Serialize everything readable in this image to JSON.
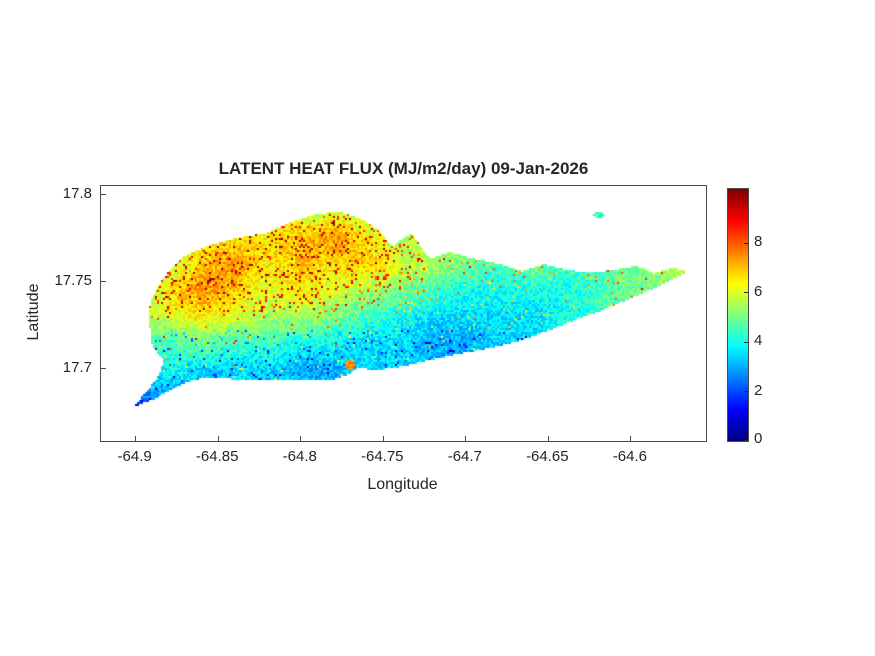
{
  "figure": {
    "background": "#ffffff",
    "text_color": "#262626",
    "axes_line_color": "#4a4a4a"
  },
  "chart_data": {
    "type": "heatmap",
    "title": "LATENT HEAT FLUX (MJ/m2/day) 09-Jan-2026",
    "xlabel": "Longitude",
    "ylabel": "Latitude",
    "xlim": [
      -64.921,
      -64.5545
    ],
    "ylim": [
      17.6585,
      17.805
    ],
    "xticks": [
      -64.9,
      -64.85,
      -64.8,
      -64.75,
      -64.7,
      -64.65,
      -64.6
    ],
    "xtick_labels": [
      "-64.9",
      "-64.85",
      "-64.8",
      "-64.75",
      "-64.7",
      "-64.65",
      "-64.6"
    ],
    "yticks": [
      17.7,
      17.75,
      17.8
    ],
    "ytick_labels": [
      "17.7",
      "17.75",
      "17.8"
    ],
    "grid_lines": false,
    "colormap": "jet",
    "clim": [
      0,
      10.2
    ],
    "colorbar_position": "right",
    "colorbar_ticks": [
      0,
      2,
      4,
      6,
      8
    ],
    "colorbar_tick_labels": [
      "0",
      "2",
      "4",
      "6",
      "8"
    ],
    "colormap_stops": [
      "#00008f",
      "#0000ff",
      "#00ffff",
      "#ffff00",
      "#ff0000",
      "#800000"
    ],
    "grid": {
      "lon": [
        -64.9,
        -64.88,
        -64.86,
        -64.84,
        -64.82,
        -64.8,
        -64.78,
        -64.76,
        -64.74,
        -64.72,
        -64.7,
        -64.68,
        -64.66,
        -64.64,
        -64.62,
        -64.6,
        -64.58,
        -64.56
      ],
      "lat": [
        17.79,
        17.775,
        17.76,
        17.745,
        17.73,
        17.715,
        17.7,
        17.685,
        17.672
      ],
      "values": [
        [
          null,
          null,
          null,
          null,
          null,
          5.5,
          6.0,
          5.5,
          null,
          null,
          null,
          null,
          null,
          null,
          null,
          null,
          null,
          null
        ],
        [
          null,
          null,
          6.0,
          6.5,
          6.5,
          7.0,
          7.5,
          6.5,
          5.5,
          null,
          null,
          null,
          null,
          null,
          null,
          null,
          null,
          null
        ],
        [
          null,
          5.5,
          7.0,
          7.5,
          6.5,
          7.0,
          6.5,
          7.0,
          6.0,
          5.5,
          5.0,
          4.5,
          5.0,
          4.5,
          4.5,
          5.0,
          5.5,
          6.0
        ],
        [
          5.0,
          6.5,
          7.5,
          7.0,
          6.0,
          6.5,
          6.0,
          5.5,
          5.0,
          4.5,
          4.0,
          4.0,
          4.0,
          4.0,
          4.5,
          5.0,
          5.0,
          null
        ],
        [
          5.5,
          6.0,
          6.5,
          6.0,
          5.5,
          5.5,
          5.0,
          4.5,
          4.0,
          3.5,
          3.5,
          3.5,
          3.5,
          4.0,
          null,
          null,
          null,
          null
        ],
        [
          4.5,
          4.5,
          5.0,
          4.5,
          4.5,
          4.0,
          4.0,
          3.5,
          3.5,
          3.0,
          3.0,
          3.5,
          null,
          null,
          null,
          null,
          null,
          null
        ],
        [
          4.0,
          4.0,
          3.5,
          3.5,
          3.5,
          3.0,
          3.0,
          3.5,
          3.5,
          null,
          null,
          null,
          null,
          null,
          null,
          null,
          null,
          null
        ],
        [
          2.5,
          3.0,
          3.0,
          3.2,
          null,
          null,
          null,
          null,
          null,
          null,
          null,
          null,
          null,
          null,
          null,
          null,
          null,
          null
        ],
        [
          1.5,
          null,
          null,
          null,
          null,
          null,
          null,
          null,
          null,
          null,
          null,
          null,
          null,
          null,
          null,
          null,
          null,
          null
        ]
      ]
    },
    "island_outline": [
      [
        -64.902,
        17.678
      ],
      [
        -64.894,
        17.686
      ],
      [
        -64.886,
        17.696
      ],
      [
        -64.883,
        17.705
      ],
      [
        -64.89,
        17.713
      ],
      [
        -64.892,
        17.728
      ],
      [
        -64.891,
        17.739
      ],
      [
        -64.886,
        17.748
      ],
      [
        -64.879,
        17.757
      ],
      [
        -64.87,
        17.765
      ],
      [
        -64.858,
        17.77
      ],
      [
        -64.84,
        17.775
      ],
      [
        -64.821,
        17.778
      ],
      [
        -64.806,
        17.784
      ],
      [
        -64.791,
        17.789
      ],
      [
        -64.776,
        17.79
      ],
      [
        -64.763,
        17.786
      ],
      [
        -64.752,
        17.779
      ],
      [
        -64.745,
        17.77
      ],
      [
        -64.733,
        17.778
      ],
      [
        -64.722,
        17.763
      ],
      [
        -64.71,
        17.767
      ],
      [
        -64.694,
        17.763
      ],
      [
        -64.679,
        17.76
      ],
      [
        -64.666,
        17.756
      ],
      [
        -64.653,
        17.76
      ],
      [
        -64.64,
        17.757
      ],
      [
        -64.625,
        17.755
      ],
      [
        -64.61,
        17.757
      ],
      [
        -64.596,
        17.759
      ],
      [
        -64.586,
        17.755
      ],
      [
        -64.575,
        17.758
      ],
      [
        -64.566,
        17.756
      ],
      [
        -64.575,
        17.751
      ],
      [
        -64.589,
        17.745
      ],
      [
        -64.604,
        17.739
      ],
      [
        -64.619,
        17.733
      ],
      [
        -64.634,
        17.728
      ],
      [
        -64.65,
        17.722
      ],
      [
        -64.667,
        17.716
      ],
      [
        -64.684,
        17.712
      ],
      [
        -64.702,
        17.709
      ],
      [
        -64.722,
        17.705
      ],
      [
        -64.74,
        17.701
      ],
      [
        -64.755,
        17.699
      ],
      [
        -64.765,
        17.701
      ],
      [
        -64.77,
        17.697
      ],
      [
        -64.779,
        17.694
      ],
      [
        -64.797,
        17.693
      ],
      [
        -64.818,
        17.693
      ],
      [
        -64.84,
        17.694
      ],
      [
        -64.858,
        17.695
      ],
      [
        -64.87,
        17.692
      ],
      [
        -64.88,
        17.687
      ],
      [
        -64.89,
        17.682
      ]
    ],
    "hotspots": [
      {
        "lon": -64.77,
        "lat": 17.702,
        "value": 7.5,
        "radius_px": 5
      },
      {
        "lon": -64.901,
        "lat": 17.679,
        "value": 1.2,
        "radius_px": 4
      }
    ],
    "buck_island": {
      "lon": -64.62,
      "lat": 17.789,
      "value": 4.5
    },
    "spatial_pattern": {
      "north_interior": "high ~5.5-9, yellow with dense orange-red speckles, strongest northwest and north-central",
      "south_coastal_strip": "low ~2-4.5, speckled cyan-blue",
      "east_peninsula": "moderate ~4-6, green-cyan with yellow near eastern tip",
      "southwest_tail_tip": "lowest ~1, dark blue",
      "offshore_cay": "small speck northeast of main island near lon -64.62, lat 17.79"
    }
  }
}
